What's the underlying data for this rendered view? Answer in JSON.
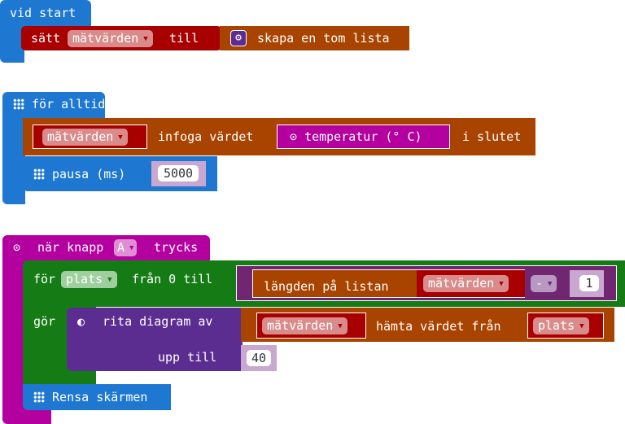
{
  "on_start": {
    "label": "vid start",
    "set_label": "sätt",
    "variable": "mätvärden",
    "to_label": "till",
    "create_list_label": "skapa en tom lista"
  },
  "forever": {
    "label": "för alltid",
    "variable": "mätvärden",
    "insert_label": "infoga värdet",
    "sensor_label": "temperatur (° C)",
    "at_end_label": "i slutet",
    "pause_label": "pausa (ms)",
    "pause_value": "5000"
  },
  "on_button": {
    "label_pre": "när knapp",
    "button": "A",
    "label_post": "trycks",
    "for_label": "för",
    "loop_var": "plats",
    "from_label": "från 0 till",
    "length_label": "längden på listan",
    "list_var": "mätvärden",
    "operator": "-",
    "operand": "1",
    "do_label": "gör",
    "plot_label": "rita diagram av",
    "get_list_var": "mätvärden",
    "get_label": "hämta värdet från",
    "index_var": "plats",
    "up_to_label": "upp till",
    "up_to_value": "40",
    "clear_label": "Rensa skärmen"
  },
  "colors": {
    "basic": "#1e78d2",
    "variables": "#a80000",
    "arrays": "#a94400",
    "input": "#b4009e",
    "loops": "#157c15",
    "led": "#5c2d91",
    "math": "#712672"
  }
}
